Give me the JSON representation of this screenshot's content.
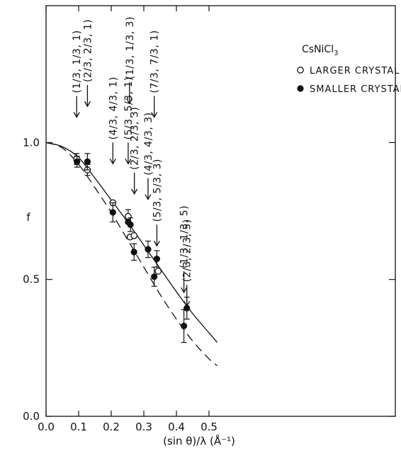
{
  "chart_data": {
    "type": "scatter",
    "title": "",
    "xlabel": "(sin θ)/λ (Å⁻¹)",
    "ylabel": "f",
    "xlim": [
      0.0,
      0.6
    ],
    "ylim": [
      0.0,
      1.5
    ],
    "x_ticks": [
      "0.0",
      "0.1",
      "0.2",
      "0.3",
      "0.4",
      "0.5"
    ],
    "y_ticks": [
      "0.0",
      "0.5",
      "1.0"
    ],
    "y_tick_values": [
      0.0,
      0.5,
      1.0
    ],
    "grid": false,
    "legend": {
      "title": "CsNiCl3",
      "placement": "top-right",
      "entries": [
        "LARGER CRYSTAL",
        "SMALLER CRYSTAL"
      ]
    },
    "series": [
      {
        "name": "LARGER CRYSTAL",
        "marker": "open-circle",
        "points": [
          {
            "x": 0.094,
            "y": 0.94,
            "err": 0.02
          },
          {
            "x": 0.127,
            "y": 0.9,
            "err": 0.02
          },
          {
            "x": 0.205,
            "y": 0.78,
            "err": 0.0
          },
          {
            "x": 0.252,
            "y": 0.73,
            "err": 0.025
          },
          {
            "x": 0.258,
            "y": 0.655,
            "err": 0.0
          },
          {
            "x": 0.27,
            "y": 0.66,
            "err": 0.0
          },
          {
            "x": 0.344,
            "y": 0.53,
            "err": 0.0
          }
        ]
      },
      {
        "name": "SMALLER CRYSTAL",
        "marker": "filled-circle",
        "points": [
          {
            "x": 0.095,
            "y": 0.93,
            "err": 0.02
          },
          {
            "x": 0.127,
            "y": 0.93,
            "err": 0.03
          },
          {
            "x": 0.205,
            "y": 0.745,
            "err": 0.035
          },
          {
            "x": 0.252,
            "y": 0.71,
            "err": 0.0
          },
          {
            "x": 0.259,
            "y": 0.7,
            "err": 0.025
          },
          {
            "x": 0.27,
            "y": 0.6,
            "err": 0.03
          },
          {
            "x": 0.313,
            "y": 0.61,
            "err": 0.03
          },
          {
            "x": 0.332,
            "y": 0.51,
            "err": 0.035
          },
          {
            "x": 0.34,
            "y": 0.575,
            "err": 0.03
          },
          {
            "x": 0.423,
            "y": 0.33,
            "err": 0.06
          },
          {
            "x": 0.432,
            "y": 0.395,
            "err": 0.04
          }
        ]
      }
    ],
    "curves": [
      {
        "style": "solid",
        "x": [
          0.0,
          0.05,
          0.1,
          0.15,
          0.2,
          0.25,
          0.3,
          0.35,
          0.4,
          0.45,
          0.5,
          0.525
        ],
        "y": [
          1.0,
          0.985,
          0.945,
          0.87,
          0.79,
          0.71,
          0.625,
          0.54,
          0.455,
          0.375,
          0.305,
          0.27
        ]
      },
      {
        "style": "dashed",
        "x": [
          0.0,
          0.05,
          0.1,
          0.15,
          0.2,
          0.25,
          0.3,
          0.35,
          0.4,
          0.45,
          0.5,
          0.525
        ],
        "y": [
          1.0,
          0.98,
          0.92,
          0.835,
          0.745,
          0.645,
          0.545,
          0.445,
          0.355,
          0.275,
          0.21,
          0.185
        ]
      }
    ],
    "annotations": [
      {
        "text": "(1/3, 1/3, 1)",
        "x": 0.094,
        "y_top": 1.17
      },
      {
        "text": "(2/3, 2/3, 1)",
        "x": 0.127,
        "y_top": 1.21
      },
      {
        "text": "(4/3, 4/3, 1)",
        "x": 0.205,
        "y_top": 1.0
      },
      {
        "text": "(5/3, 5/3, 1)",
        "x": 0.252,
        "y_top": 1.0
      },
      {
        "text": "(1/3, 1/3, 3)",
        "x": 0.256,
        "y_top": 1.22
      },
      {
        "text": "(2/3, 2/3, 3)",
        "x": 0.271,
        "y_top": 0.89
      },
      {
        "text": "(4/3, 4/3, 3)",
        "x": 0.313,
        "y_top": 0.87
      },
      {
        "text": "(7/3, 7/3, 1)",
        "x": 0.332,
        "y_top": 1.17
      },
      {
        "text": "(5/3, 5/3, 3)",
        "x": 0.34,
        "y_top": 0.7
      },
      {
        "text": "(1/3, 1/3, 5)",
        "x": 0.423,
        "y_top": 0.53
      },
      {
        "text": "(2/3, 2/3, 5)",
        "x": 0.432,
        "y_top": 0.48
      }
    ]
  }
}
